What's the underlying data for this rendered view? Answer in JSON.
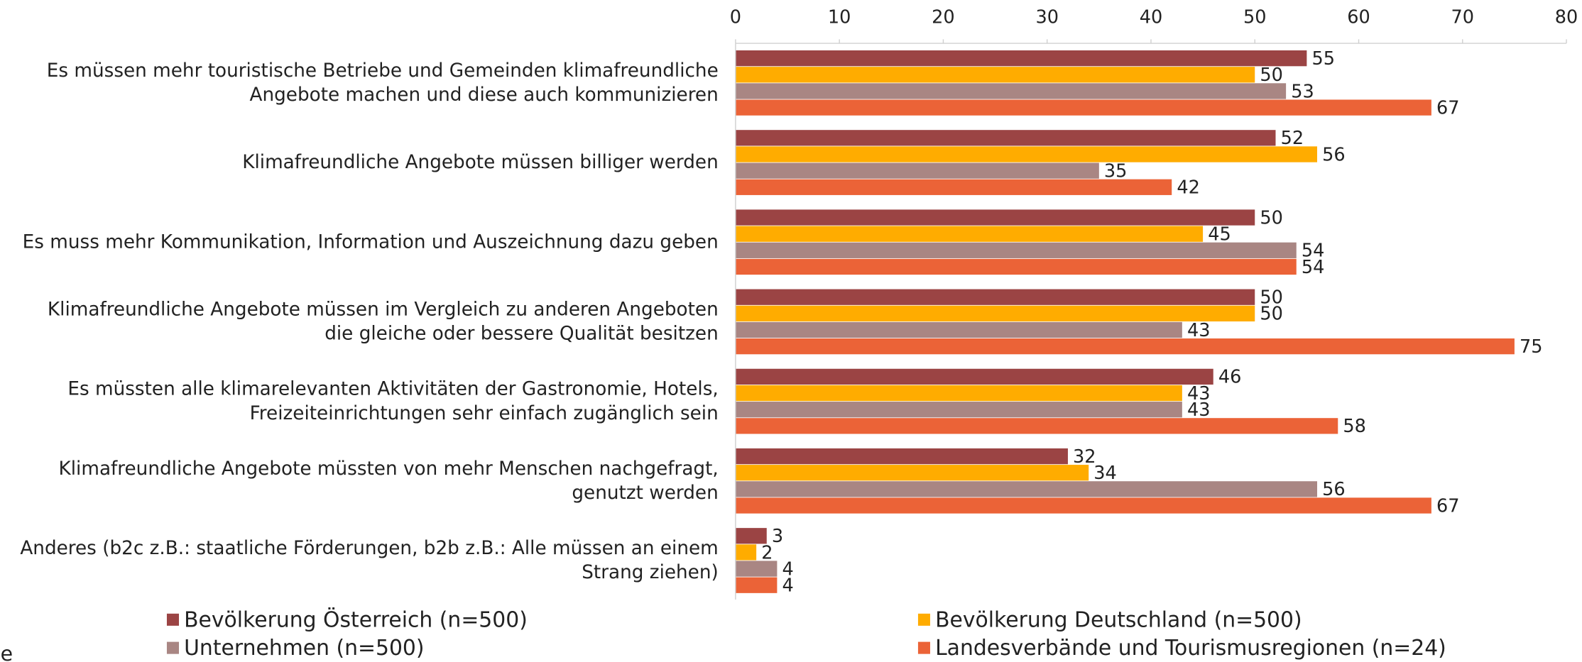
{
  "chart_data": {
    "type": "hbar",
    "categories": [
      "Es müssen mehr touristische Betriebe und Gemeinden klimafreundliche\nAngebote machen und diese auch kommunizieren",
      "Klimafreundliche Angebote müssen billiger werden",
      "Es muss mehr Kommunikation, Information und Auszeichnung dazu geben",
      "Klimafreundliche Angebote müssen im Vergleich zu anderen Angeboten\ndie gleiche oder bessere Qualität besitzen",
      "Es müssten alle klimarelevanten Aktivitäten der Gastronomie, Hotels,\nFreizeiteinrichtungen sehr einfach zugänglich sein",
      "Klimafreundliche Angebote müssten von mehr Menschen nachgefragt,\ngenutzt werden",
      "Anderes (b2c z.B.: staatliche Förderungen, b2b z.B.: Alle müssen an einem\nStrang ziehen)"
    ],
    "series": [
      {
        "name": "Bevölkerung Österreich (n=500)",
        "color": "#9b4444",
        "values": [
          55,
          52,
          50,
          50,
          46,
          32,
          3
        ]
      },
      {
        "name": "Bevölkerung Deutschland (n=500)",
        "color": "#ffac00",
        "values": [
          50,
          56,
          45,
          50,
          43,
          34,
          2
        ]
      },
      {
        "name": "Unternehmen (n=500)",
        "color": "#a98683",
        "values": [
          53,
          35,
          54,
          43,
          43,
          56,
          4
        ]
      },
      {
        "name": "Landesverbände und Tourismusregionen (n=24)",
        "color": "#eb6337",
        "values": [
          67,
          42,
          54,
          75,
          58,
          67,
          4
        ]
      }
    ],
    "xlim": [
      0,
      80
    ],
    "xticks": [
      0,
      10,
      20,
      30,
      40,
      50,
      60,
      70,
      80
    ],
    "legend": "bottom",
    "footer_fragment": "e"
  }
}
